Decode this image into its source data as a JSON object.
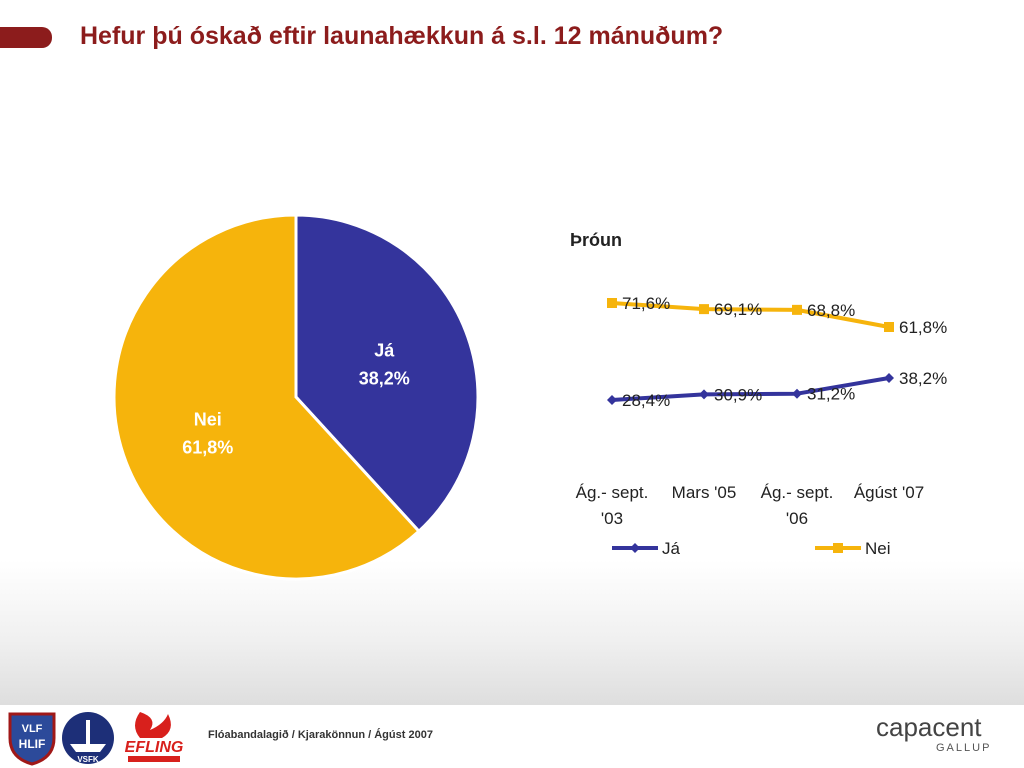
{
  "slide": {
    "title": "Hefur þú óskað eftir launahækkun á s.l. 12 mánuðum?",
    "footer_text": "Flóabandalagið  / Kjarakönnun / Ágúst 2007",
    "brand_main": "capacent",
    "brand_sub": "GALLUP",
    "logos": [
      "VLF HLIF",
      "VSFK",
      "EFLING"
    ],
    "colors": {
      "title": "#8c1c1c",
      "ja": "#34349c",
      "nei": "#f6b40c"
    }
  },
  "chart_data": [
    {
      "type": "pie",
      "slices": [
        {
          "label": "Já",
          "value": 38.2,
          "value_label": "38,2%",
          "color": "#34349c"
        },
        {
          "label": "Nei",
          "value": 61.8,
          "value_label": "61,8%",
          "color": "#f6b40c"
        }
      ]
    },
    {
      "type": "line",
      "title": "Þróun",
      "categories": [
        "Ág.- sept. '03",
        "Mars '05",
        "Ág.- sept. '06",
        "Ágúst '07"
      ],
      "category_lines": [
        [
          "Ág.- sept.",
          "'03"
        ],
        [
          "Mars '05"
        ],
        [
          "Ág.- sept.",
          "'06"
        ],
        [
          "Ágúst '07"
        ]
      ],
      "series": [
        {
          "name": "Já",
          "values": [
            28.4,
            30.9,
            31.2,
            38.2
          ],
          "labels": [
            "28,4%",
            "30,9%",
            "31,2%",
            "38,2%"
          ],
          "color": "#34349c",
          "marker": "diamond"
        },
        {
          "name": "Nei",
          "values": [
            71.6,
            69.1,
            68.8,
            61.8
          ],
          "labels": [
            "71,6%",
            "69,1%",
            "68,8%",
            "61,8%"
          ],
          "color": "#f6b40c",
          "marker": "square"
        }
      ],
      "legend_position": "bottom",
      "grid": false
    }
  ]
}
